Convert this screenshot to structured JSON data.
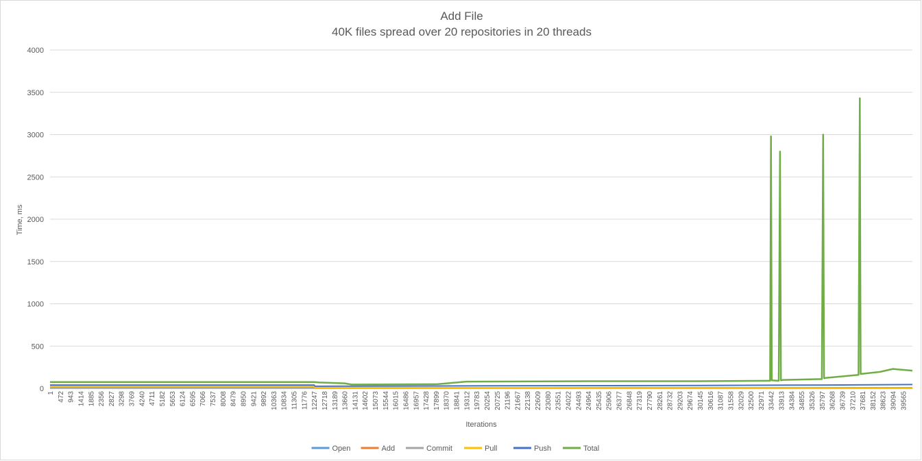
{
  "chart_data": {
    "type": "line",
    "title": "Add File",
    "subtitle": "40K files spread over 20 repositories in 20 threads",
    "xlabel": "Iterations",
    "ylabel": "Time, ms",
    "ylim": [
      0,
      4000
    ],
    "yticks": [
      0,
      500,
      1000,
      1500,
      2000,
      2500,
      3000,
      3500,
      4000
    ],
    "xlim": [
      1,
      40000
    ],
    "xtick_labels": [
      1,
      472,
      943,
      1414,
      1885,
      2356,
      2827,
      3298,
      3769,
      4240,
      4711,
      5182,
      5653,
      6124,
      6595,
      7066,
      7537,
      8008,
      8479,
      8950,
      9421,
      9892,
      10363,
      10834,
      11305,
      11776,
      12247,
      12718,
      13189,
      13660,
      14131,
      14602,
      15073,
      15544,
      16015,
      16486,
      16957,
      17428,
      17899,
      18370,
      18841,
      19312,
      19783,
      20254,
      20725,
      21196,
      21667,
      22138,
      22609,
      23080,
      23551,
      24022,
      24493,
      24964,
      25435,
      25906,
      26377,
      26848,
      27319,
      27790,
      28261,
      28732,
      29203,
      29674,
      30145,
      30616,
      31087,
      31558,
      32029,
      32500,
      32971,
      33442,
      33913,
      34384,
      34855,
      35326,
      35797,
      36268,
      36739,
      37210,
      37681,
      38152,
      38623,
      39094,
      39565
    ],
    "grid": true,
    "legend_position": "bottom",
    "series": [
      {
        "name": "Open",
        "color": "#5b9bd5",
        "x": [
          1,
          12247,
          12300,
          40000
        ],
        "y": [
          3,
          3,
          2,
          2
        ]
      },
      {
        "name": "Add",
        "color": "#ed7d31",
        "x": [
          1,
          12247,
          12300,
          40000
        ],
        "y": [
          5,
          5,
          3,
          4
        ]
      },
      {
        "name": "Commit",
        "color": "#a5a5a5",
        "x": [
          1,
          12247,
          12300,
          40000
        ],
        "y": [
          8,
          8,
          6,
          8
        ]
      },
      {
        "name": "Pull",
        "color": "#ffc000",
        "x": [
          1,
          12247,
          12300,
          40000
        ],
        "y": [
          25,
          25,
          0,
          0
        ]
      },
      {
        "name": "Push",
        "color": "#4472c4",
        "x": [
          1,
          12247,
          12300,
          20000,
          30000,
          36000,
          40000
        ],
        "y": [
          40,
          40,
          25,
          30,
          35,
          40,
          45
        ]
      },
      {
        "name": "Total",
        "color": "#70ad47",
        "x": [
          1,
          12247,
          12500,
          13660,
          14000,
          18000,
          19312,
          25000,
          30000,
          33300,
          33400,
          33442,
          33480,
          33800,
          33860,
          33900,
          34000,
          35800,
          35860,
          35900,
          36000,
          37500,
          37560,
          37600,
          38500,
          39094,
          40000
        ],
        "y": [
          75,
          75,
          70,
          60,
          45,
          50,
          80,
          85,
          85,
          90,
          90,
          2980,
          95,
          90,
          2800,
          95,
          100,
          110,
          3000,
          120,
          125,
          160,
          3430,
          170,
          195,
          230,
          210
        ]
      }
    ]
  }
}
